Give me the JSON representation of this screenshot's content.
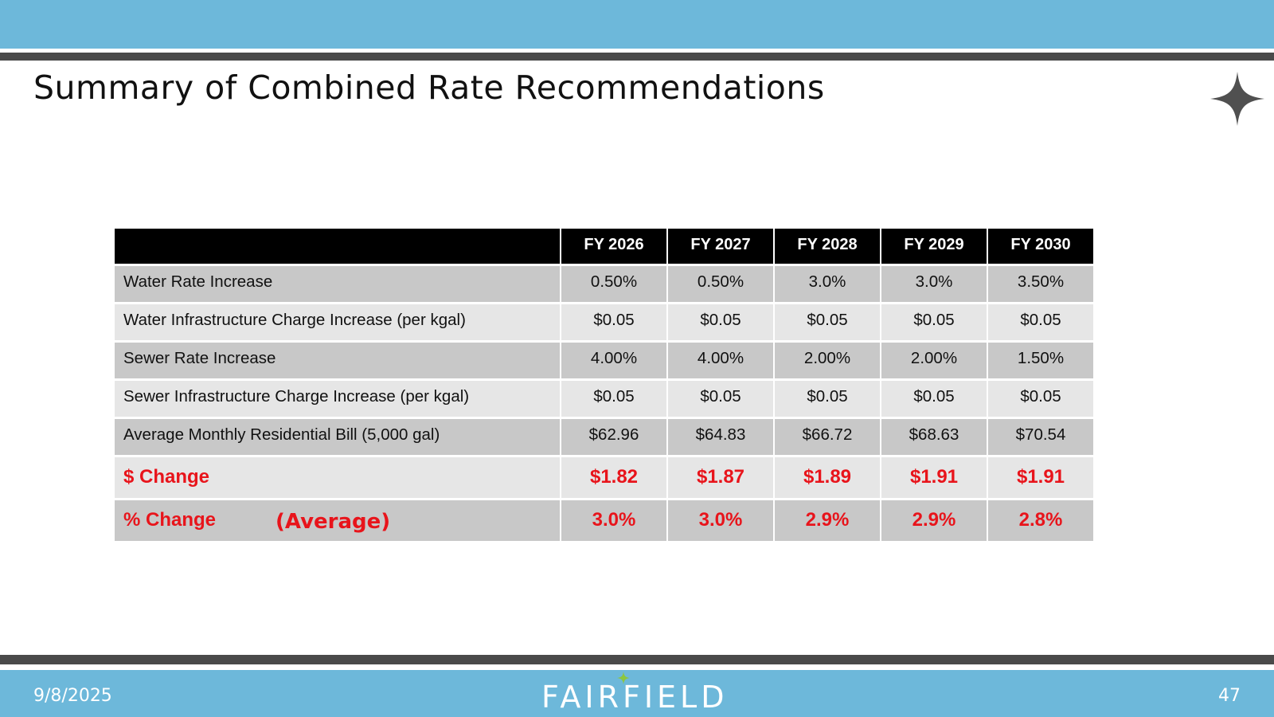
{
  "slide": {
    "title": "Summary of Combined Rate Recommendations",
    "date": "9/8/2025",
    "page_number": "47",
    "logo_text": "FAIRFIELD"
  },
  "colors": {
    "band": "#6db8da",
    "rule": "#4a4a4a",
    "header_bg": "#000000",
    "row_dark": "#c8c8c8",
    "row_light": "#e6e6e6",
    "accent_red": "#e8141b",
    "logo_star": "#8dc63f"
  },
  "icons": {
    "corner": "four-point-star-icon",
    "logo_mark": "four-point-star-icon"
  },
  "table": {
    "headers": [
      "",
      "FY 2026",
      "FY 2027",
      "FY 2028",
      "FY 2029",
      "FY 2030"
    ],
    "rows": [
      {
        "label": "Water Rate Increase",
        "values": [
          "0.50%",
          "0.50%",
          "3.0%",
          "3.0%",
          "3.50%"
        ]
      },
      {
        "label": "Water Infrastructure Charge Increase (per kgal)",
        "values": [
          "$0.05",
          "$0.05",
          "$0.05",
          "$0.05",
          "$0.05"
        ]
      },
      {
        "label": "Sewer Rate Increase",
        "values": [
          "4.00%",
          "4.00%",
          "2.00%",
          "2.00%",
          "1.50%"
        ]
      },
      {
        "label": "Sewer Infrastructure Charge Increase (per kgal)",
        "values": [
          "$0.05",
          "$0.05",
          "$0.05",
          "$0.05",
          "$0.05"
        ]
      },
      {
        "label": "Average Monthly Residential Bill (5,000 gal)",
        "values": [
          "$62.96",
          "$64.83",
          "$66.72",
          "$68.63",
          "$70.54"
        ]
      },
      {
        "label": "$ Change",
        "values": [
          "$1.82",
          "$1.87",
          "$1.89",
          "$1.91",
          "$1.91"
        ]
      },
      {
        "label": "% Change",
        "values": [
          "3.0%",
          "3.0%",
          "2.9%",
          "2.9%",
          "2.8%"
        ]
      }
    ],
    "average_note": "(Average)"
  }
}
